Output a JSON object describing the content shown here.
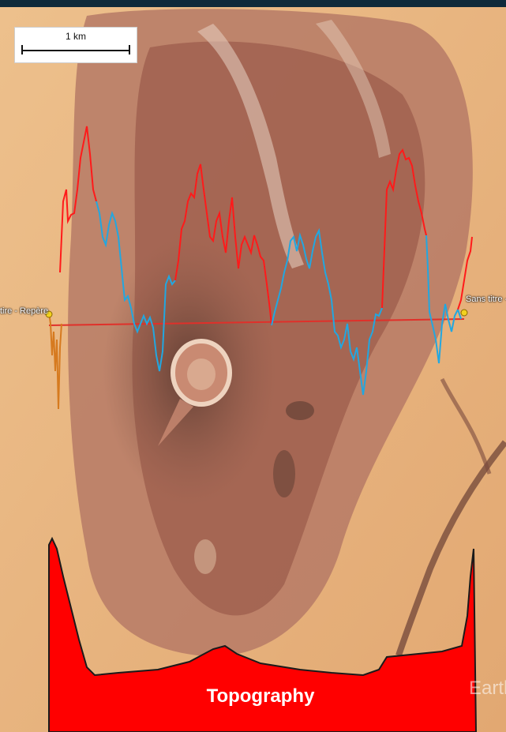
{
  "map": {
    "scale_label": "1 km",
    "marker_left_label": "tire - Repère",
    "marker_right_label": "Sans titre - Re",
    "watermark": "Earth"
  },
  "topography": {
    "title": "Topography",
    "fill_color": "#ff0000"
  },
  "profile": {
    "high_color": "#ff1a1a",
    "low_color": "#22a7e0",
    "edge_color": "#d67a1f",
    "baseline_color": "#e0302a"
  },
  "colors": {
    "desert_light": "#e8b47f",
    "desert_dark": "#9a5a4a"
  }
}
